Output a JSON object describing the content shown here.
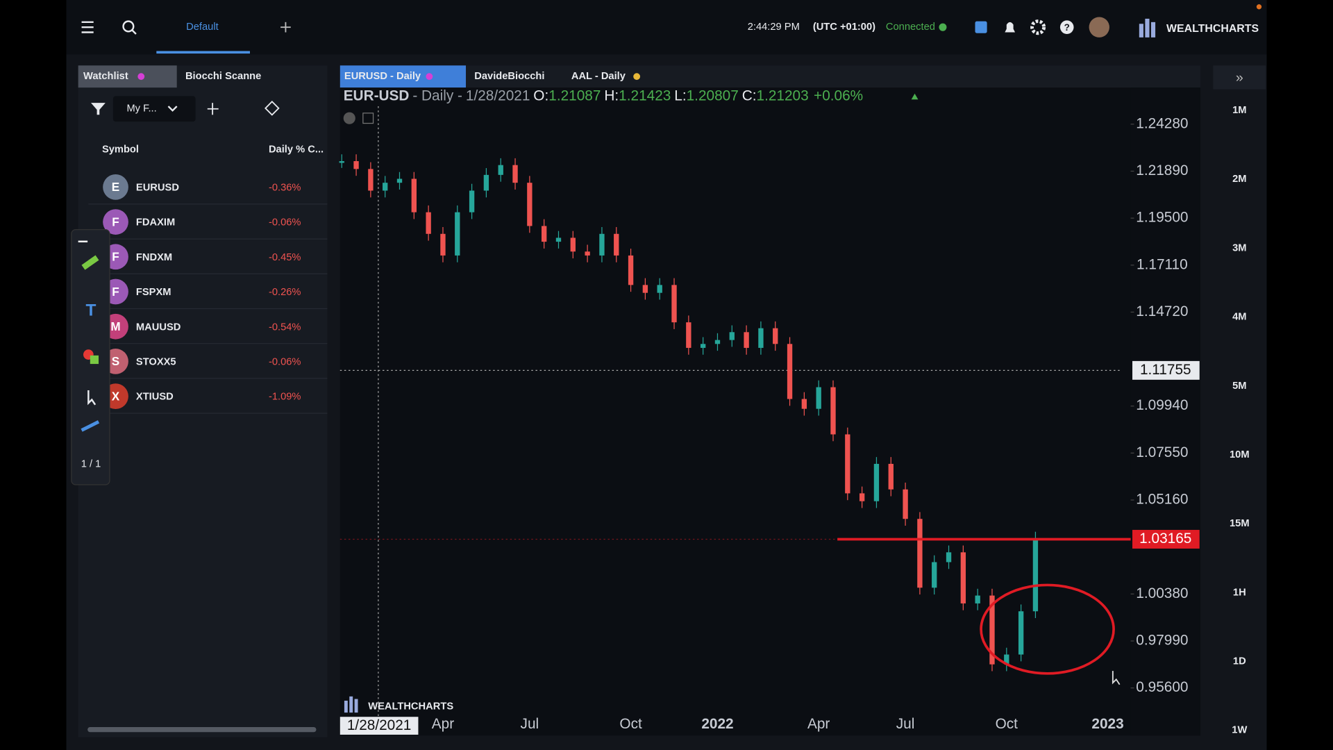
{
  "top_bar": {
    "tab": "Default",
    "time": "2:44:29 PM",
    "timezone": "(UTC +01:00)",
    "status": "Connected",
    "brand": "WEALTHCHARTS"
  },
  "watchlist": {
    "tabs": [
      "Watchlist",
      "Biocchi Scanne"
    ],
    "filter": "My F...",
    "columns": [
      "Symbol",
      "Daily % C..."
    ],
    "rows": [
      {
        "initial": "E",
        "symbol": "EURUSD",
        "change": "-0.36%"
      },
      {
        "initial": "F",
        "symbol": "FDAXIM",
        "change": "-0.06%"
      },
      {
        "initial": "F",
        "symbol": "FNDXM",
        "change": "-0.45%"
      },
      {
        "initial": "F",
        "symbol": "FSPXM",
        "change": "-0.26%"
      },
      {
        "initial": "M",
        "symbol": "MAUUSD",
        "change": "-0.54%"
      },
      {
        "initial": "S",
        "symbol": "STOXX5",
        "change": "-0.06%"
      },
      {
        "initial": "X",
        "symbol": "XTIUSD",
        "change": "-1.09%"
      }
    ]
  },
  "drawing_toolbar": {
    "page": "1 / 1"
  },
  "chart_tabs": [
    "EURUSD - Daily",
    "DavideBiocchi",
    "AAL - Daily"
  ],
  "chart_header": {
    "symbol": "EUR-USD",
    "interval": "- Daily -",
    "date": "1/28/2021",
    "open_label": "O:",
    "open": 1.21087,
    "high_label": "H:",
    "high": 1.21423,
    "low_label": "L:",
    "low": 1.20807,
    "close_label": "C:",
    "close": 1.21203,
    "change": "+0.06%"
  },
  "watermark": "WEALTHCHARTS",
  "timeframes": [
    "1M",
    "2M",
    "3M",
    "4M",
    "5M",
    "10M",
    "15M",
    "1H",
    "1D",
    "1W"
  ],
  "chart_data": {
    "type": "candles",
    "categories": [
      null,
      null,
      null,
      null,
      null,
      null,
      null,
      "Apr",
      null,
      null,
      null,
      null,
      null,
      "Jul",
      null,
      null,
      null,
      null,
      null,
      null,
      "Oct",
      null,
      null,
      null,
      null,
      null,
      "2022",
      null,
      null,
      null,
      null,
      null,
      null,
      "Apr",
      null,
      null,
      null,
      null,
      null,
      "Jul",
      null,
      null,
      null,
      null,
      null,
      null,
      "Oct",
      null,
      null,
      null,
      null,
      null,
      null,
      "2023"
    ],
    "values": [
      1.224,
      1.22,
      1.209,
      1.213,
      1.215,
      1.198,
      1.187,
      1.176,
      1.198,
      1.209,
      1.217,
      1.222,
      1.213,
      1.191,
      1.183,
      1.185,
      1.178,
      1.176,
      1.187,
      1.176,
      1.161,
      1.157,
      1.161,
      1.142,
      1.129,
      1.131,
      1.133,
      1.137,
      1.129,
      1.139,
      1.131,
      1.103,
      1.098,
      1.109,
      1.085,
      1.055,
      1.051,
      1.07,
      1.057,
      1.042,
      1.007,
      1.02,
      1.025,
      0.999,
      1.003,
      0.968,
      0.973,
      0.995,
      1.032,
      null,
      null,
      null,
      null,
      null
    ],
    "up_color": "#26a69a",
    "down_color": "#ef5350",
    "ylim": [
      0.9426,
      1.2519
    ],
    "yticks": [
      {
        "value": 1.2428,
        "label": "1.24280"
      },
      {
        "value": 1.2189,
        "label": "1.21890"
      },
      {
        "value": 1.195,
        "label": "1.19500"
      },
      {
        "value": 1.1711,
        "label": "1.17110"
      },
      {
        "value": 1.1472,
        "label": "1.14720"
      },
      {
        "value": 1.0994,
        "label": "1.09940"
      },
      {
        "value": 1.0755,
        "label": "1.07550"
      },
      {
        "value": 1.0516,
        "label": "1.05160"
      },
      {
        "value": 1.0038,
        "label": "1.00380"
      },
      {
        "value": 0.9799,
        "label": "0.97990"
      },
      {
        "value": 0.956,
        "label": "0.95600"
      }
    ],
    "crosshair": 1.11755,
    "crosshair_date": "1/28/2021",
    "hline": 1.03165,
    "hline_color": "#e01b24"
  }
}
